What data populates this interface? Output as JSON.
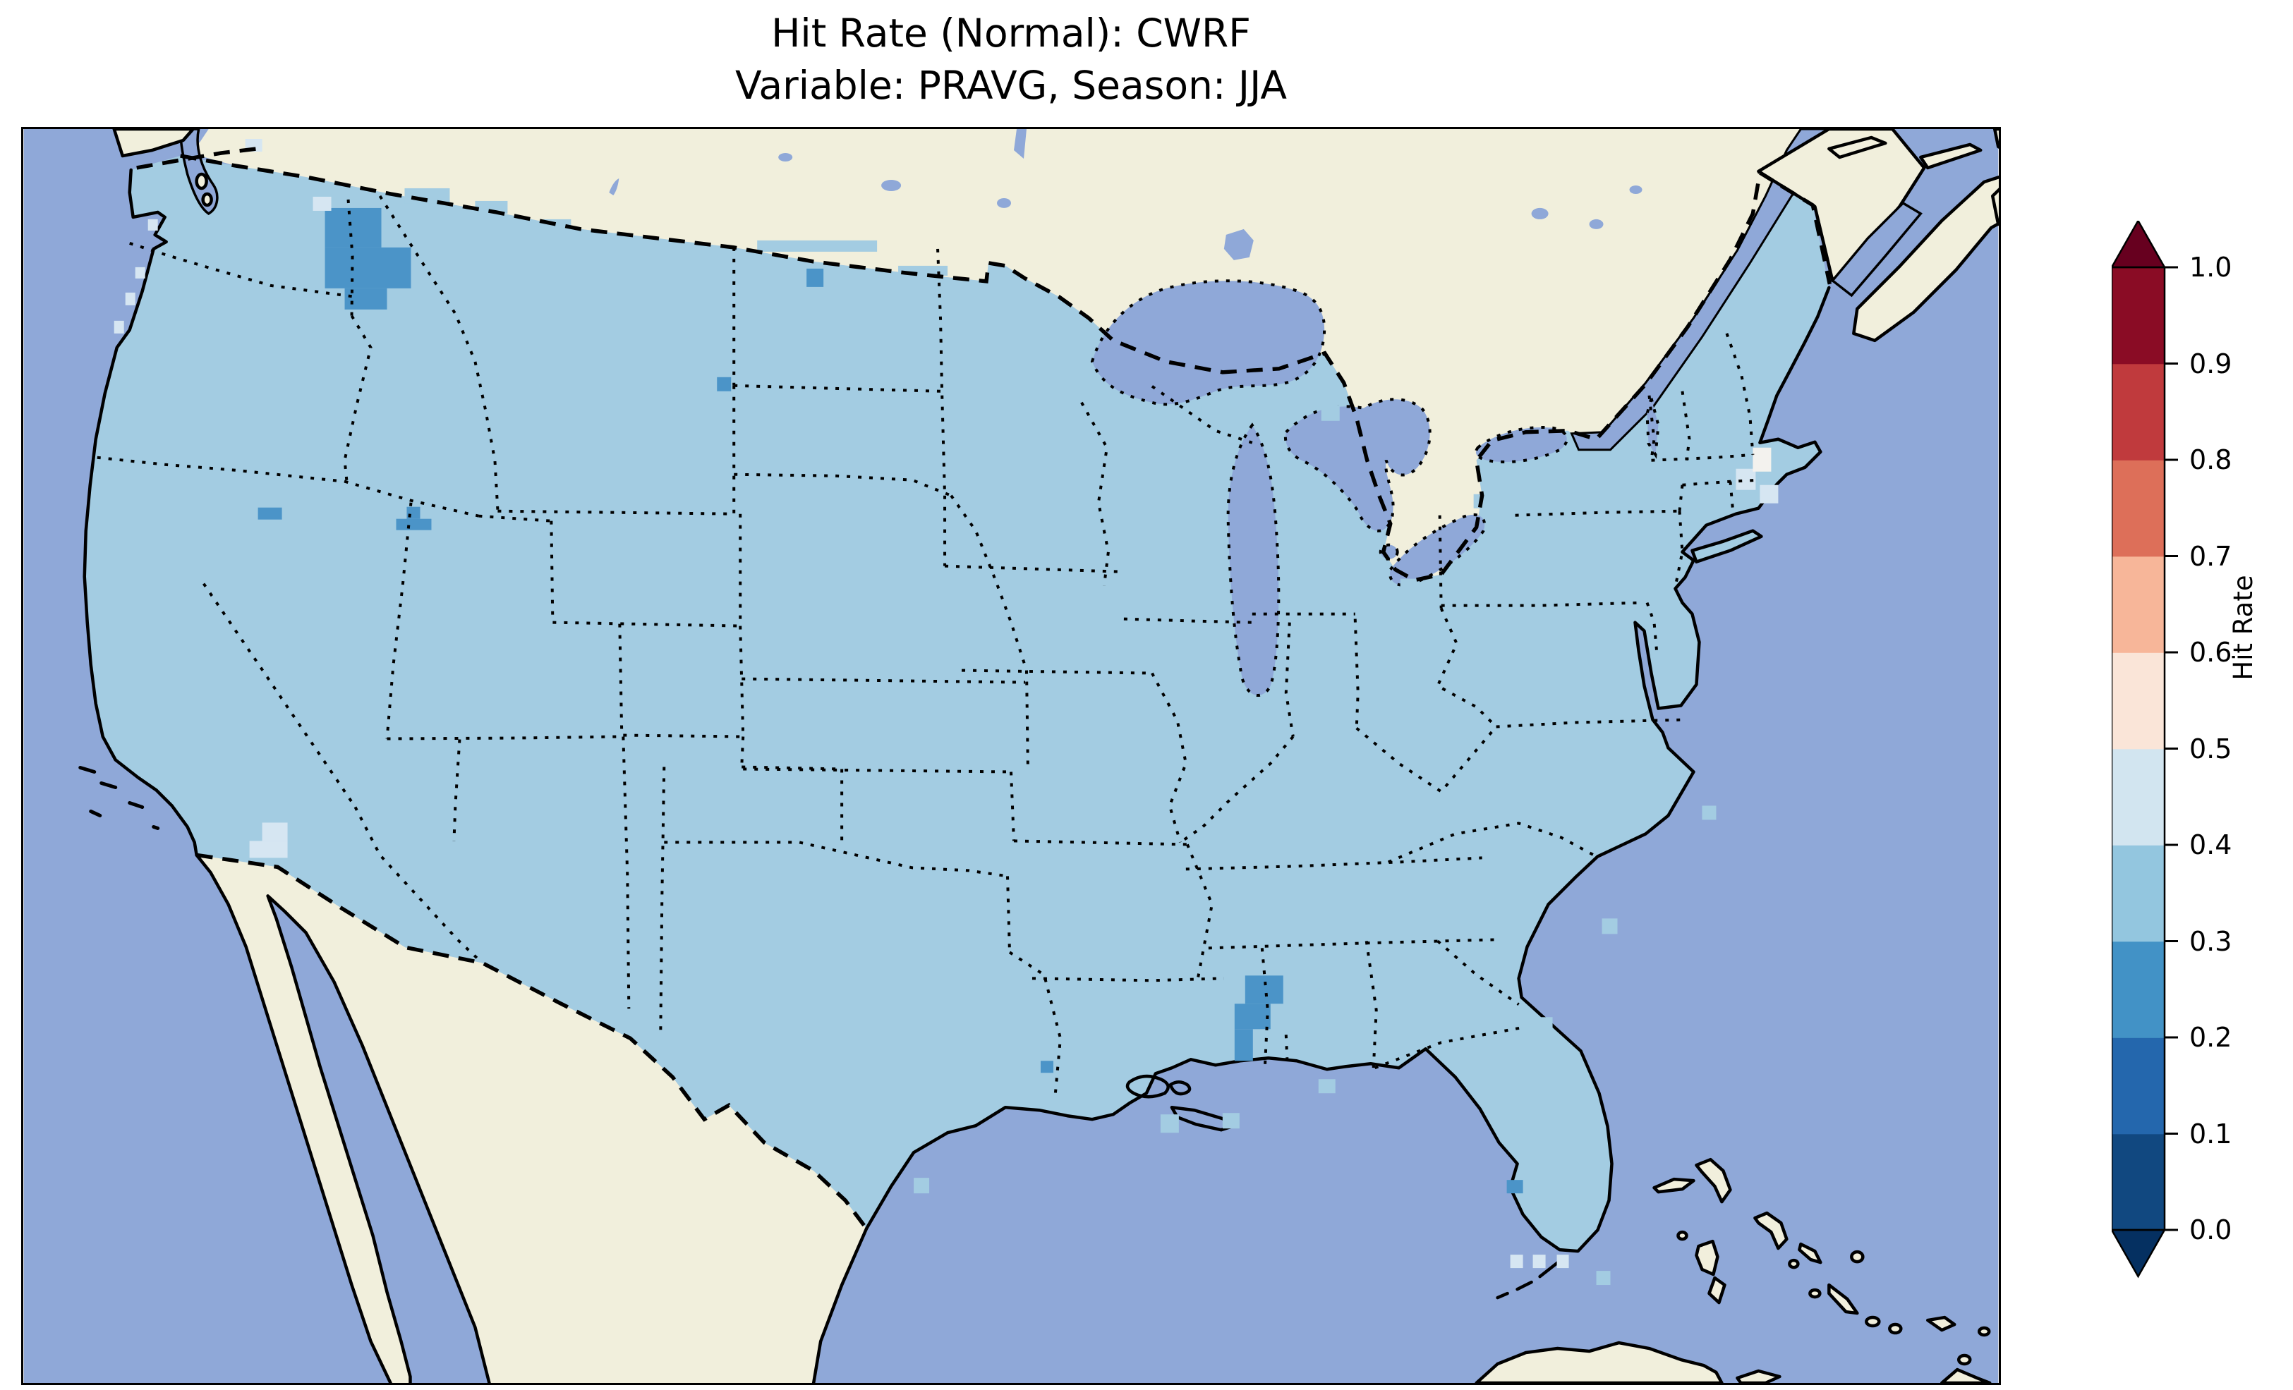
{
  "title": {
    "line1": "Hit Rate (Normal): CWRF",
    "line2": "Variable: PRAVG, Season: JJA"
  },
  "colorbar": {
    "label": "Hit Rate",
    "ticks_top_to_bottom": [
      "1.0",
      "0.9",
      "0.8",
      "0.7",
      "0.6",
      "0.5",
      "0.4",
      "0.3",
      "0.2",
      "0.1",
      "0.0"
    ],
    "segments_bottom_to_top": [
      "#114880",
      "#2467ad",
      "#4292c6",
      "#93c6df",
      "#d2e5f0",
      "#fae5d8",
      "#f7b699",
      "#dd6f59",
      "#c03a3d",
      "#8a0c25"
    ],
    "arrow_bottom_color": "#053061",
    "arrow_top_color": "#67001f"
  },
  "map": {
    "colors": {
      "ocean": "#8fa8d8",
      "land_non_us": "#f1efdc",
      "us_fill_hit_03_04": "#a3cce2",
      "hit_02_03": "#4b94c8",
      "hit_04_05": "#d6e6f2",
      "hit_05_06": "#f3f2ee",
      "boundaries": "#000000"
    },
    "patches": [
      {
        "bin": "0.2-0.3",
        "color": "#4b94c8",
        "rects": [
          [
            427,
            112,
            80,
            56
          ],
          [
            427,
            168,
            122,
            58
          ],
          [
            455,
            226,
            60,
            30
          ],
          [
            1110,
            198,
            24,
            26
          ],
          [
            983,
            352,
            20,
            20
          ],
          [
            332,
            537,
            34,
            17
          ],
          [
            543,
            536,
            19,
            17
          ],
          [
            528,
            553,
            50,
            16
          ],
          [
            1732,
            1201,
            54,
            40
          ],
          [
            1717,
            1241,
            51,
            36
          ],
          [
            1717,
            1277,
            26,
            45
          ],
          [
            1442,
            1322,
            18,
            17
          ],
          [
            2103,
            1491,
            23,
            19
          ]
        ]
      },
      {
        "bin": "0.4-0.5",
        "color": "#d6e6f2",
        "rects": [
          [
            338,
            984,
            36,
            26
          ],
          [
            320,
            1010,
            54,
            24
          ],
          [
            176,
            128,
            14,
            16
          ],
          [
            158,
            196,
            14,
            16
          ],
          [
            144,
            232,
            14,
            18
          ],
          [
            128,
            272,
            14,
            18
          ],
          [
            314,
            14,
            24,
            18
          ],
          [
            410,
            96,
            26,
            20
          ],
          [
            2428,
            482,
            28,
            30
          ],
          [
            2462,
            505,
            26,
            26
          ],
          [
            2108,
            1597,
            18,
            19
          ],
          [
            2140,
            1597,
            18,
            19
          ],
          [
            2174,
            1597,
            17,
            19
          ]
        ]
      },
      {
        "bin": "0.5-0.6",
        "color": "#f3f2ee",
        "rects": [
          [
            2452,
            452,
            26,
            34
          ]
        ]
      },
      {
        "bin": "0.3-0.4",
        "color": "#a3cce2",
        "rects": [
          [
            540,
            84,
            64,
            22
          ],
          [
            640,
            102,
            46,
            18
          ],
          [
            1040,
            158,
            170,
            16
          ],
          [
            1240,
            194,
            70,
            14
          ],
          [
            736,
            128,
            40,
            16
          ],
          [
            1612,
            1398,
            26,
            26
          ],
          [
            1700,
            1396,
            24,
            22
          ],
          [
            1836,
            1348,
            24,
            20
          ],
          [
            1262,
            1488,
            22,
            22
          ],
          [
            2238,
            1120,
            22,
            22
          ],
          [
            2380,
            960,
            20,
            20
          ],
          [
            2146,
            1260,
            22,
            20
          ],
          [
            2230,
            1620,
            20,
            20
          ],
          [
            1640,
            392,
            30,
            26
          ],
          [
            1840,
            392,
            26,
            22
          ],
          [
            1952,
            638,
            24,
            20
          ],
          [
            2056,
            518,
            22,
            20
          ]
        ]
      }
    ]
  },
  "chart_data": {
    "type": "heatmap",
    "title": "Hit Rate (Normal): CWRF",
    "subtitle": "Variable: PRAVG, Season: JJA",
    "colorbar_label": "Hit Rate",
    "value_range": [
      0.0,
      1.0
    ],
    "tick_step": 0.1,
    "colormap": "RdBu_r (discrete, extended arrows both ends)",
    "legend_position": "right",
    "dominant_value_bin": "0.3-0.4 over nearly all of the contiguous United States",
    "anomaly_regions": [
      {
        "location": "northeast Washington (US-Canada border)",
        "hit_rate_bin": "0.2-0.3"
      },
      {
        "location": "Montana/North Dakota border (northern edge)",
        "hit_rate_bin": "0.2-0.3"
      },
      {
        "location": "eastern Montana near Dakotas corner",
        "hit_rate_bin": "0.2-0.3"
      },
      {
        "location": "central Nevada",
        "hit_rate_bin": "0.2-0.3"
      },
      {
        "location": "Nevada/Utah border",
        "hit_rate_bin": "0.2-0.3"
      },
      {
        "location": "Mississippi/Alabama border (~32N)",
        "hit_rate_bin": "0.2-0.3"
      },
      {
        "location": "southern Texas coast",
        "hit_rate_bin": "0.2-0.3"
      },
      {
        "location": "southwest Florida coast",
        "hit_rate_bin": "0.2-0.3"
      },
      {
        "location": "San Diego / Imperial Valley area",
        "hit_rate_bin": "0.4-0.5"
      },
      {
        "location": "Boston / Cape Cod area",
        "hit_rate_bin": "0.5-0.6"
      },
      {
        "location": "cells south of Florida Keys",
        "hit_rate_bin": "0.4-0.5"
      }
    ]
  }
}
